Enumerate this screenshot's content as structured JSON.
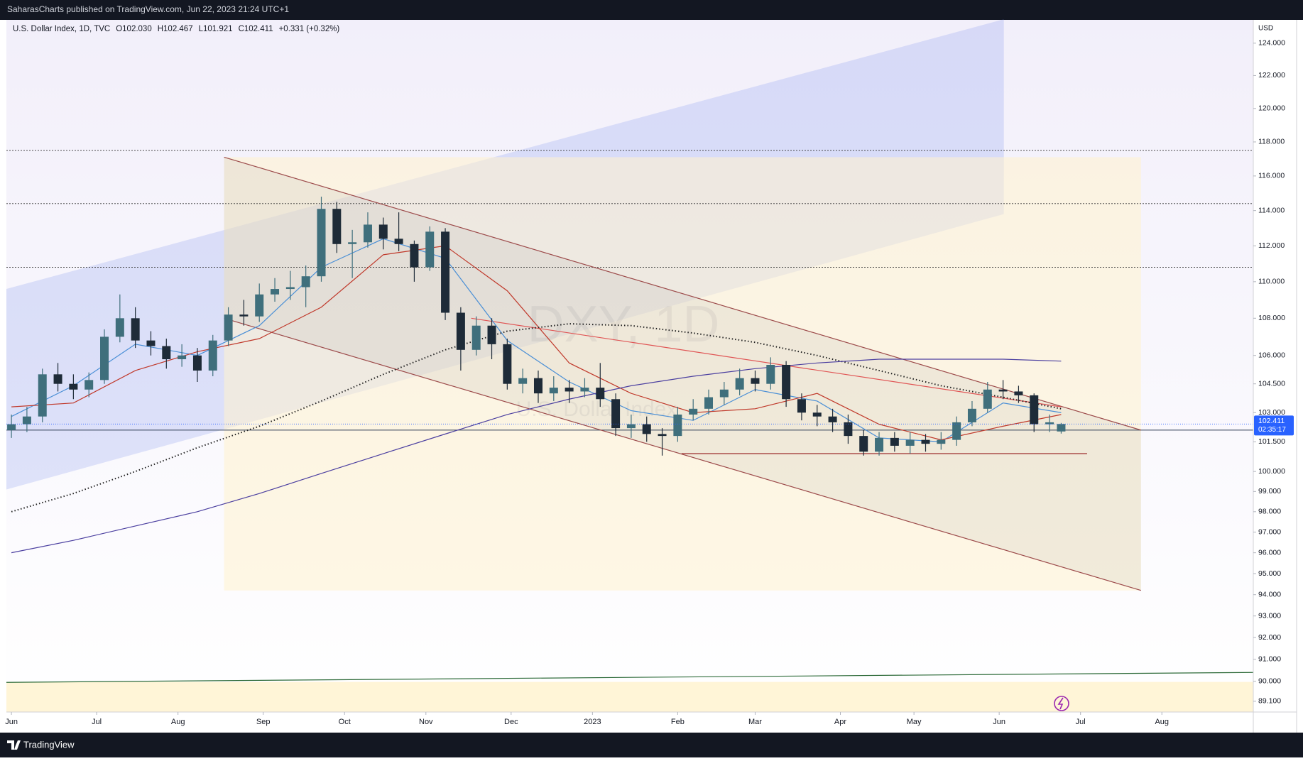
{
  "header": {
    "text": "SaharasCharts published on TradingView.com, Jun 22, 2023 21:24 UTC+1"
  },
  "footer": {
    "brand": "TradingView"
  },
  "chart_data": {
    "type": "candlestick",
    "legend": {
      "symbol": "U.S. Dollar Index, 1D, TVC",
      "open": "O102.030",
      "high": "H102.467",
      "low": "L101.921",
      "close": "C102.411",
      "change": "+0.331 (+0.32%)"
    },
    "watermark": {
      "title": "DXY, 1D",
      "subtitle": "U.S. Dollar Index"
    },
    "y_unit": "USD",
    "countdown": "02:35:17",
    "log": true,
    "up_color": "#3f6f7c",
    "down_color": "#1e2b38",
    "x": [
      0,
      4,
      8,
      12,
      16,
      20,
      24,
      28,
      32,
      36,
      40,
      44,
      48,
      52,
      56,
      60,
      64,
      68,
      72,
      76,
      80,
      84,
      88,
      92,
      96,
      100,
      104,
      108,
      112,
      116,
      120,
      124,
      128,
      132,
      136,
      140,
      144,
      148,
      152,
      156,
      160,
      164,
      168,
      172,
      176,
      180,
      184,
      188,
      192,
      196,
      200,
      204,
      208,
      212,
      216,
      220,
      224,
      228,
      232,
      236,
      240,
      244,
      248,
      252,
      256,
      260,
      264,
      268,
      271
    ],
    "open": [
      102.1,
      102.4,
      102.8,
      105.0,
      104.5,
      104.2,
      104.7,
      107.0,
      108.0,
      106.8,
      106.5,
      105.8,
      106.0,
      105.2,
      106.8,
      108.2,
      108.1,
      109.3,
      109.6,
      109.7,
      110.3,
      114.1,
      112.1,
      112.2,
      113.2,
      112.4,
      112.1,
      110.8,
      112.8,
      108.3,
      106.3,
      107.6,
      106.6,
      104.5,
      104.8,
      104.0,
      104.3,
      104.1,
      104.3,
      103.7,
      102.2,
      102.4,
      101.9,
      101.8,
      102.9,
      103.2,
      103.8,
      104.2,
      104.8,
      104.5,
      105.5,
      103.7,
      103.0,
      102.8,
      102.5,
      101.8,
      101.0,
      101.7,
      101.3,
      101.6,
      101.4,
      101.6,
      102.5,
      103.2,
      104.2,
      104.1,
      103.9,
      102.4,
      102.03
    ],
    "high": [
      102.9,
      103.3,
      105.3,
      105.6,
      105.0,
      105.1,
      107.4,
      109.3,
      108.6,
      107.3,
      106.9,
      106.6,
      106.4,
      107.1,
      108.6,
      109.0,
      109.9,
      110.2,
      110.6,
      110.9,
      114.8,
      114.5,
      112.9,
      113.9,
      113.6,
      113.9,
      112.3,
      113.1,
      113.0,
      108.6,
      108.1,
      108.0,
      106.9,
      105.3,
      105.2,
      104.9,
      104.7,
      104.8,
      105.6,
      104.0,
      102.9,
      102.8,
      102.2,
      103.3,
      103.7,
      104.2,
      104.6,
      105.3,
      105.2,
      105.9,
      105.7,
      104.0,
      103.4,
      103.2,
      102.9,
      102.1,
      102.0,
      102.0,
      102.0,
      101.9,
      102.0,
      102.8,
      103.6,
      104.6,
      104.7,
      104.4,
      104.0,
      102.9,
      102.467
    ],
    "low": [
      101.7,
      102.0,
      102.5,
      104.1,
      103.7,
      103.8,
      104.5,
      106.7,
      106.4,
      106.0,
      105.3,
      105.4,
      104.6,
      104.9,
      106.5,
      107.6,
      107.8,
      108.9,
      109.0,
      108.6,
      110.0,
      111.6,
      110.2,
      111.9,
      111.8,
      111.7,
      110.0,
      110.6,
      107.9,
      105.2,
      106.0,
      105.8,
      104.2,
      104.0,
      103.5,
      103.6,
      103.5,
      103.8,
      103.3,
      101.8,
      101.7,
      101.5,
      100.8,
      101.5,
      102.6,
      102.9,
      103.4,
      103.9,
      104.1,
      104.2,
      103.3,
      102.6,
      102.3,
      102.0,
      101.4,
      100.8,
      100.8,
      101.0,
      100.9,
      101.0,
      101.1,
      101.3,
      102.3,
      103.0,
      103.7,
      103.5,
      102.0,
      102.0,
      101.921
    ],
    "close": [
      102.4,
      102.8,
      105.0,
      104.5,
      104.2,
      104.7,
      107.0,
      108.0,
      106.8,
      106.5,
      105.8,
      106.0,
      105.2,
      106.8,
      108.2,
      108.1,
      109.3,
      109.6,
      109.7,
      110.3,
      114.1,
      112.1,
      112.2,
      113.2,
      112.4,
      112.1,
      110.8,
      112.8,
      108.3,
      106.3,
      107.6,
      106.6,
      104.5,
      104.8,
      104.0,
      104.3,
      104.1,
      104.3,
      103.7,
      102.2,
      102.4,
      101.9,
      101.8,
      102.9,
      103.2,
      103.8,
      104.2,
      104.8,
      104.5,
      105.5,
      103.7,
      103.0,
      102.8,
      102.5,
      101.8,
      101.0,
      101.7,
      101.3,
      101.6,
      101.4,
      101.6,
      102.5,
      103.2,
      104.2,
      104.1,
      103.9,
      102.4,
      102.5,
      102.411
    ],
    "indicators": [
      {
        "color": "#4a8fd6",
        "dashed": false,
        "x": [
          0,
          16,
          32,
          48,
          64,
          80,
          96,
          112,
          128,
          144,
          160,
          176,
          192,
          208,
          224,
          240,
          256,
          271
        ],
        "values": [
          102.8,
          104.4,
          106.6,
          106.0,
          107.6,
          110.8,
          112.4,
          111.3,
          106.8,
          104.6,
          103.1,
          102.6,
          104.2,
          103.6,
          101.7,
          101.5,
          103.5,
          103.0
        ]
      },
      {
        "color": "#c0392b",
        "dashed": false,
        "x": [
          0,
          16,
          32,
          48,
          64,
          80,
          96,
          112,
          128,
          144,
          160,
          176,
          192,
          208,
          224,
          240,
          256,
          271
        ],
        "values": [
          103.3,
          103.5,
          105.2,
          106.2,
          106.9,
          108.6,
          111.5,
          112.0,
          109.5,
          105.6,
          104.0,
          103.0,
          103.2,
          104.0,
          102.4,
          101.6,
          102.3,
          102.9
        ]
      },
      {
        "color": "#222222",
        "dashed": true,
        "x": [
          0,
          16,
          32,
          48,
          64,
          80,
          96,
          112,
          128,
          144,
          160,
          176,
          192,
          208,
          224,
          240,
          256,
          271
        ],
        "values": [
          98.0,
          98.9,
          100.0,
          101.2,
          102.3,
          103.6,
          105.0,
          106.3,
          107.3,
          107.7,
          107.6,
          107.2,
          106.7,
          106.0,
          105.2,
          104.4,
          103.8,
          103.2
        ]
      },
      {
        "color": "#4b3fa0",
        "dashed": false,
        "x": [
          0,
          16,
          32,
          48,
          64,
          80,
          96,
          112,
          128,
          144,
          160,
          176,
          192,
          208,
          224,
          240,
          256,
          271
        ],
        "values": [
          96.0,
          96.6,
          97.3,
          98.0,
          98.9,
          99.9,
          100.9,
          101.9,
          102.9,
          103.7,
          104.4,
          104.9,
          105.3,
          105.6,
          105.8,
          105.8,
          105.8,
          105.7
        ]
      }
    ],
    "zones": [
      {
        "fill": "rgba(120,140,235,0.22)",
        "points": [
          [
            -1.3,
            109.6
          ],
          [
            256.2,
            125.5
          ],
          [
            256.2,
            113.8
          ],
          [
            -1.3,
            99.1
          ]
        ]
      },
      {
        "fill": "rgba(255,243,205,0.55)",
        "points": [
          [
            54.9,
            117.1
          ],
          [
            291.6,
            117.1
          ],
          [
            291.6,
            94.2
          ],
          [
            54.9,
            94.2
          ]
        ]
      },
      {
        "fill": "rgba(150,150,150,0.12)",
        "points": [
          [
            54.9,
            117.1
          ],
          [
            291.6,
            102.1
          ],
          [
            291.6,
            94.2
          ],
          [
            54.9,
            108.0
          ]
        ]
      },
      {
        "fill": "rgba(255,243,205,0.8)",
        "points": [
          [
            -1.3,
            89.97
          ],
          [
            320.6,
            89.97
          ],
          [
            320.6,
            88.62
          ],
          [
            -1.3,
            88.62
          ]
        ]
      }
    ],
    "lines": [
      {
        "color": "#9c4a4a",
        "points": [
          [
            54.9,
            117.1
          ],
          [
            291.6,
            102.1
          ]
        ]
      },
      {
        "color": "#9c4a4a",
        "points": [
          [
            54.9,
            108.0
          ],
          [
            291.6,
            94.2
          ]
        ]
      },
      {
        "color": "#e05555",
        "points": [
          [
            118.7,
            108.0
          ],
          [
            271,
            103.3
          ]
        ]
      },
      {
        "color": "#9c2f2f",
        "points": [
          [
            173,
            100.9
          ],
          [
            277.7,
            100.9
          ]
        ]
      },
      {
        "color": "#2e6b3a",
        "points": [
          [
            -1.3,
            89.95
          ],
          [
            320.6,
            90.4
          ]
        ]
      }
    ],
    "levels": [
      {
        "value": 117.5,
        "dashed": true
      },
      {
        "value": 114.4,
        "dashed": true
      },
      {
        "value": 110.8,
        "dashed": true
      },
      {
        "value": 102.1,
        "dashed": false
      }
    ],
    "xlim": [
      -1.3,
      320.6
    ],
    "xticks": [
      {
        "value": 0,
        "label": "Jun"
      },
      {
        "value": 22,
        "label": "Jul"
      },
      {
        "value": 43,
        "label": "Aug"
      },
      {
        "value": 65,
        "label": "Sep"
      },
      {
        "value": 86,
        "label": "Oct"
      },
      {
        "value": 107,
        "label": "Nov"
      },
      {
        "value": 129,
        "label": "Dec"
      },
      {
        "value": 150,
        "label": "2023"
      },
      {
        "value": 172,
        "label": "Feb"
      },
      {
        "value": 192,
        "label": "Mar"
      },
      {
        "value": 214,
        "label": "Apr"
      },
      {
        "value": 233,
        "label": "May"
      },
      {
        "value": 255,
        "label": "Jun"
      },
      {
        "value": 276,
        "label": "Jul"
      },
      {
        "value": 297,
        "label": "Aug"
      }
    ],
    "ylim": [
      88.62,
      125.46
    ],
    "yticks": [
      {
        "value": 124,
        "label": "124.000"
      },
      {
        "value": 122,
        "label": "122.000"
      },
      {
        "value": 120,
        "label": "120.000"
      },
      {
        "value": 118,
        "label": "118.000"
      },
      {
        "value": 116,
        "label": "116.000"
      },
      {
        "value": 114,
        "label": "114.000"
      },
      {
        "value": 112,
        "label": "112.000"
      },
      {
        "value": 110,
        "label": "110.000"
      },
      {
        "value": 108,
        "label": "108.000"
      },
      {
        "value": 106,
        "label": "106.000"
      },
      {
        "value": 104.5,
        "label": "104.500"
      },
      {
        "value": 103,
        "label": "103.000"
      },
      {
        "value": 101.5,
        "label": "101.500"
      },
      {
        "value": 100,
        "label": "100.000"
      },
      {
        "value": 99,
        "label": "99.000"
      },
      {
        "value": 98,
        "label": "98.000"
      },
      {
        "value": 97,
        "label": "97.000"
      },
      {
        "value": 96,
        "label": "96.000"
      },
      {
        "value": 95,
        "label": "95.000"
      },
      {
        "value": 94,
        "label": "94.000"
      },
      {
        "value": 93,
        "label": "93.000"
      },
      {
        "value": 92,
        "label": "92.000"
      },
      {
        "value": 91,
        "label": "91.000"
      },
      {
        "value": 90,
        "label": "90.000"
      },
      {
        "value": 89.1,
        "label": "89.100"
      }
    ],
    "price_label_color": "#2962ff"
  }
}
